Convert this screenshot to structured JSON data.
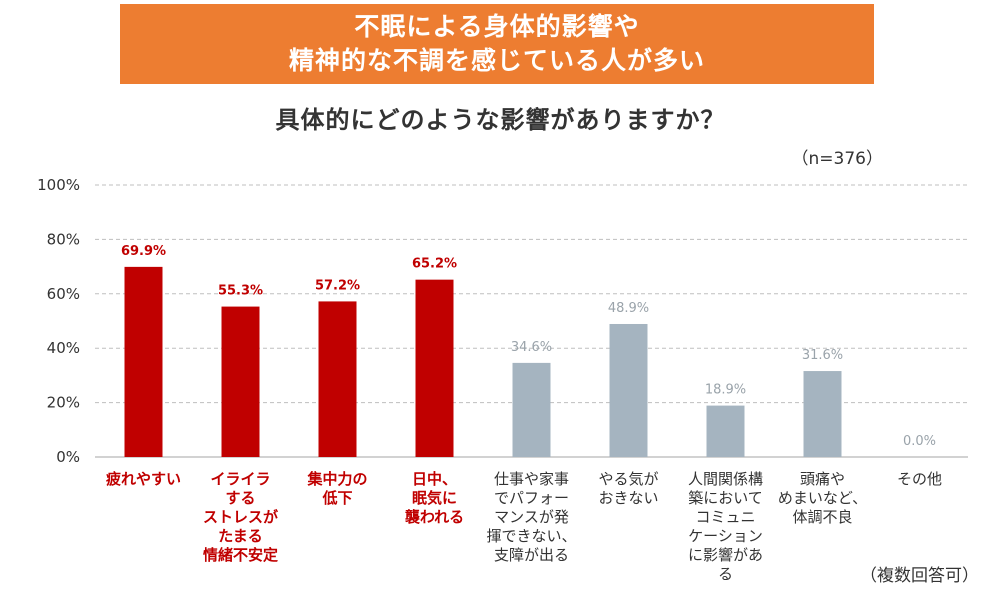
{
  "header": {
    "banner_line1": "不眠による身体的影響や",
    "banner_line2": "精神的な不調を感じている人が多い",
    "question": "具体的にどのような影響がありますか？",
    "sample_size": "（n=376）",
    "answer_note": "（複数回答可）"
  },
  "colors": {
    "banner": "#ED7D31",
    "highlight": "#C00000",
    "normal": "#A5B4C0"
  },
  "chart_data": {
    "type": "bar",
    "ylim": [
      0,
      100
    ],
    "yticks": [
      "0%",
      "20%",
      "40%",
      "60%",
      "80%",
      "100%"
    ],
    "grid": true,
    "categories": [
      "疲れやすい",
      "イライラ\nする\nストレスが\nたまる\n情緒不安定",
      "集中力の\n低下",
      "日中、\n眠気に\n襲われる",
      "仕事や家事\nでパフォー\nマンスが発\n揮できない、\n支障が出る",
      "やる気が\nおきない",
      "人間関係構\n築において\nコミュニ\nケーション\nに影響があ\nる",
      "頭痛や\nめまいなど、\n体調不良",
      "その他"
    ],
    "values": [
      69.9,
      55.3,
      57.2,
      65.2,
      34.6,
      48.9,
      18.9,
      31.6,
      0.0
    ],
    "labels": [
      "69.9%",
      "55.3%",
      "57.2%",
      "65.2%",
      "34.6%",
      "48.9%",
      "18.9%",
      "31.6%",
      "0.0%"
    ],
    "highlighted": [
      true,
      true,
      true,
      true,
      false,
      false,
      false,
      false,
      false
    ]
  }
}
